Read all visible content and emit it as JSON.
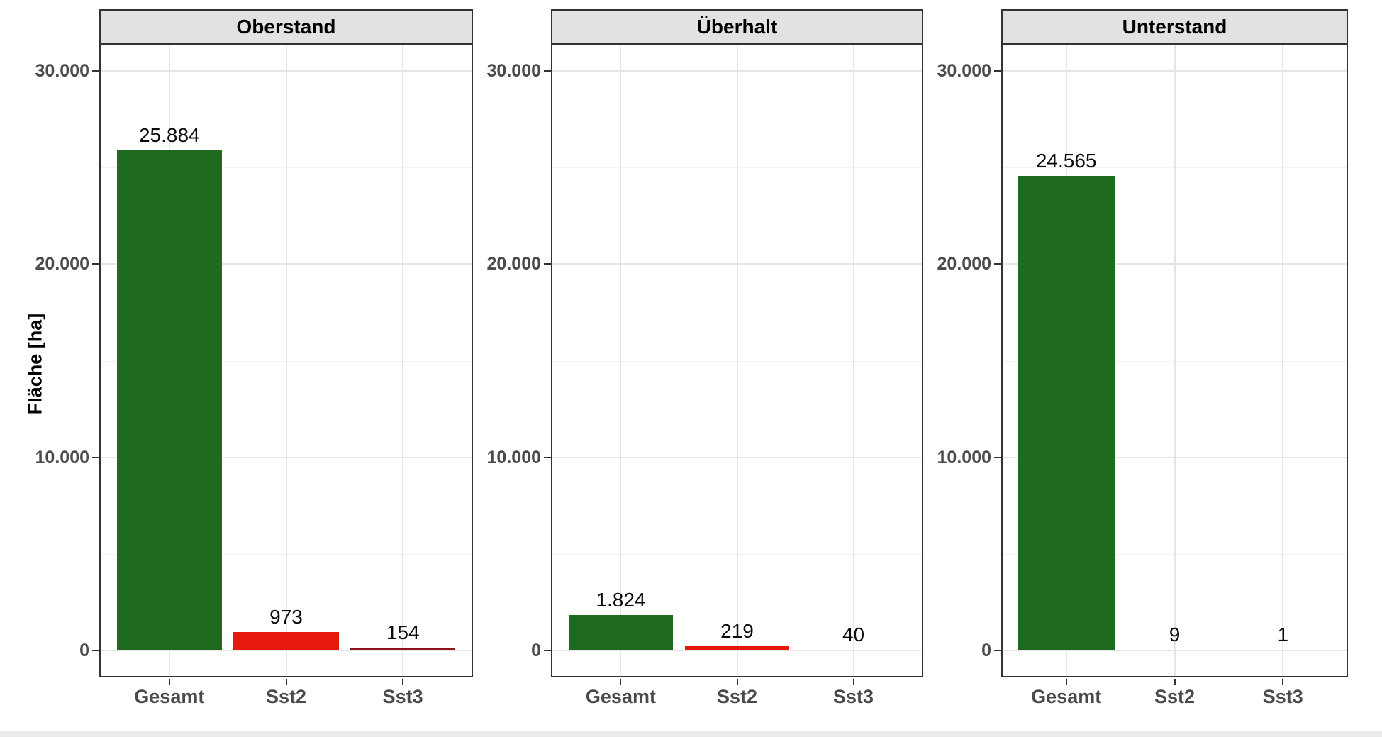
{
  "chart_data": {
    "type": "bar",
    "faceted": true,
    "title": "",
    "xlabel": "",
    "ylabel": "Fläche [ha]",
    "categories": [
      "Gesamt",
      "Sst2",
      "Sst3"
    ],
    "facets": [
      {
        "title": "Oberstand",
        "values": [
          25884,
          973,
          154
        ],
        "value_labels": [
          "25.884",
          "973",
          "154"
        ]
      },
      {
        "title": "Überhalt",
        "values": [
          1824,
          219,
          40
        ],
        "value_labels": [
          "1.824",
          "219",
          "40"
        ]
      },
      {
        "title": "Unterstand",
        "values": [
          24565,
          9,
          1
        ],
        "value_labels": [
          "24.565",
          "9",
          "1"
        ]
      }
    ],
    "bar_colors": [
      "#1e6b20",
      "#e5190d",
      "#8b1515"
    ],
    "yticks": [
      {
        "value": 0,
        "label": "0"
      },
      {
        "value": 10000,
        "label": "10.000"
      },
      {
        "value": 20000,
        "label": "20.000"
      },
      {
        "value": 30000,
        "label": "30.000"
      }
    ],
    "yticks_minor": [
      5000,
      15000,
      25000
    ],
    "ylim": [
      -1400,
      31400
    ],
    "grid": {
      "major": true,
      "minor": true
    },
    "legend": "none",
    "colors": {
      "strip_bg": "#e2e2e2",
      "panel_border": "#333333",
      "grid_major": "#e6e6e6",
      "grid_minor": "#f2f2f2",
      "tick_text": "#4a4a4a",
      "value_text": "#0a0a0a",
      "strip_text": "#000000"
    }
  }
}
